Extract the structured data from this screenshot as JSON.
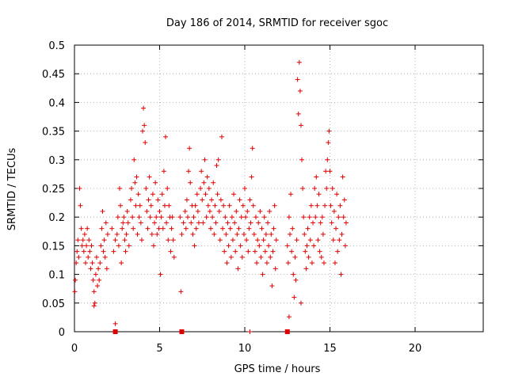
{
  "chart_data": {
    "type": "scatter",
    "title": "Day 186 of 2014, SRMTID for receiver sgoc",
    "xlabel": "GPS time / hours",
    "ylabel": "SRMTID / TECUs",
    "xlim": [
      0,
      24
    ],
    "ylim": [
      0,
      0.5
    ],
    "xticks": [
      0,
      5,
      10,
      15,
      20
    ],
    "yticks": [
      0,
      0.05,
      0.1,
      0.15,
      0.2,
      0.25,
      0.3,
      0.35,
      0.4,
      0.45,
      0.5
    ],
    "xtick_labels": [
      "0",
      "5",
      "10",
      "15",
      "20"
    ],
    "ytick_labels": [
      "0",
      "0.05",
      "0.1",
      "0.15",
      "0.2",
      "0.25",
      "0.3",
      "0.35",
      "0.4",
      "0.45",
      "0.5"
    ],
    "grid": true,
    "marker": "+",
    "color": "#e00000",
    "series": [
      {
        "name": "SRMTID",
        "points": [
          [
            0.02,
            0.07
          ],
          [
            0.05,
            0.09
          ],
          [
            0.1,
            0.12
          ],
          [
            0.15,
            0.14
          ],
          [
            0.2,
            0.16
          ],
          [
            0.25,
            0.13
          ],
          [
            0.3,
            0.25
          ],
          [
            0.35,
            0.22
          ],
          [
            0.4,
            0.18
          ],
          [
            0.45,
            0.15
          ],
          [
            0.5,
            0.16
          ],
          [
            0.55,
            0.14
          ],
          [
            0.6,
            0.17
          ],
          [
            0.65,
            0.12
          ],
          [
            0.7,
            0.15
          ],
          [
            0.75,
            0.18
          ],
          [
            0.8,
            0.13
          ],
          [
            0.85,
            0.16
          ],
          [
            0.9,
            0.14
          ],
          [
            0.95,
            0.11
          ],
          [
            1.0,
            0.15
          ],
          [
            1.05,
            0.12
          ],
          [
            1.1,
            0.09
          ],
          [
            1.15,
            0.07
          ],
          [
            1.2,
            0.05
          ],
          [
            1.25,
            0.1
          ],
          [
            1.3,
            0.13
          ],
          [
            1.35,
            0.08
          ],
          [
            1.4,
            0.11
          ],
          [
            1.45,
            0.09
          ],
          [
            1.5,
            0.12
          ],
          [
            1.55,
            0.15
          ],
          [
            1.6,
            0.18
          ],
          [
            1.65,
            0.21
          ],
          [
            1.7,
            0.14
          ],
          [
            1.75,
            0.16
          ],
          [
            1.8,
            0.13
          ],
          [
            1.85,
            0.19
          ],
          [
            1.9,
            0.11
          ],
          [
            1.95,
            0.17
          ],
          [
            2.2,
            0.18
          ],
          [
            2.3,
            0.14
          ],
          [
            2.4,
            0.16
          ],
          [
            2.5,
            0.17
          ],
          [
            2.55,
            0.2
          ],
          [
            2.6,
            0.15
          ],
          [
            2.65,
            0.25
          ],
          [
            2.7,
            0.22
          ],
          [
            2.75,
            0.12
          ],
          [
            2.8,
            0.18
          ],
          [
            2.85,
            0.19
          ],
          [
            2.9,
            0.2
          ],
          [
            2.95,
            0.16
          ],
          [
            3.0,
            0.14
          ],
          [
            3.05,
            0.17
          ],
          [
            3.1,
            0.21
          ],
          [
            3.15,
            0.19
          ],
          [
            3.2,
            0.15
          ],
          [
            3.3,
            0.23
          ],
          [
            3.35,
            0.25
          ],
          [
            3.4,
            0.2
          ],
          [
            3.45,
            0.18
          ],
          [
            3.5,
            0.3
          ],
          [
            3.55,
            0.26
          ],
          [
            3.6,
            0.22
          ],
          [
            3.65,
            0.27
          ],
          [
            3.7,
            0.17
          ],
          [
            3.75,
            0.24
          ],
          [
            3.8,
            0.2
          ],
          [
            3.85,
            0.22
          ],
          [
            3.9,
            0.19
          ],
          [
            3.95,
            0.16
          ],
          [
            4.0,
            0.35
          ],
          [
            4.05,
            0.39
          ],
          [
            4.1,
            0.36
          ],
          [
            4.15,
            0.33
          ],
          [
            4.2,
            0.25
          ],
          [
            4.25,
            0.21
          ],
          [
            4.3,
            0.18
          ],
          [
            4.35,
            0.23
          ],
          [
            4.4,
            0.27
          ],
          [
            4.45,
            0.2
          ],
          [
            4.5,
            0.22
          ],
          [
            4.55,
            0.17
          ],
          [
            4.6,
            0.24
          ],
          [
            4.65,
            0.15
          ],
          [
            4.7,
            0.19
          ],
          [
            4.75,
            0.26
          ],
          [
            4.8,
            0.2
          ],
          [
            4.85,
            0.17
          ],
          [
            4.9,
            0.23
          ],
          [
            4.95,
            0.18
          ],
          [
            5.0,
            0.21
          ],
          [
            5.05,
            0.1
          ],
          [
            5.1,
            0.2
          ],
          [
            5.15,
            0.24
          ],
          [
            5.2,
            0.18
          ],
          [
            5.25,
            0.28
          ],
          [
            5.3,
            0.22
          ],
          [
            5.35,
            0.34
          ],
          [
            5.4,
            0.19
          ],
          [
            5.45,
            0.25
          ],
          [
            5.5,
            0.16
          ],
          [
            5.55,
            0.22
          ],
          [
            5.6,
            0.2
          ],
          [
            5.65,
            0.14
          ],
          [
            5.7,
            0.18
          ],
          [
            5.75,
            0.2
          ],
          [
            5.8,
            0.16
          ],
          [
            5.85,
            0.13
          ],
          [
            6.2,
            0.2
          ],
          [
            6.3,
            0.17
          ],
          [
            6.4,
            0.19
          ],
          [
            6.5,
            0.21
          ],
          [
            6.55,
            0.18
          ],
          [
            6.6,
            0.23
          ],
          [
            6.65,
            0.2
          ],
          [
            6.7,
            0.28
          ],
          [
            6.75,
            0.32
          ],
          [
            6.8,
            0.26
          ],
          [
            6.85,
            0.19
          ],
          [
            6.9,
            0.22
          ],
          [
            6.95,
            0.17
          ],
          [
            7.0,
            0.2
          ],
          [
            7.05,
            0.15
          ],
          [
            7.1,
            0.22
          ],
          [
            7.15,
            0.18
          ],
          [
            7.2,
            0.24
          ],
          [
            7.25,
            0.21
          ],
          [
            7.3,
            0.19
          ],
          [
            7.4,
            0.25
          ],
          [
            7.45,
            0.28
          ],
          [
            7.5,
            0.23
          ],
          [
            7.55,
            0.19
          ],
          [
            7.6,
            0.26
          ],
          [
            7.65,
            0.3
          ],
          [
            7.7,
            0.24
          ],
          [
            7.75,
            0.2
          ],
          [
            7.8,
            0.27
          ],
          [
            7.85,
            0.22
          ],
          [
            7.9,
            0.25
          ],
          [
            7.95,
            0.21
          ],
          [
            8.0,
            0.18
          ],
          [
            8.05,
            0.23
          ],
          [
            8.1,
            0.2
          ],
          [
            8.15,
            0.26
          ],
          [
            8.2,
            0.17
          ],
          [
            8.25,
            0.22
          ],
          [
            8.3,
            0.19
          ],
          [
            8.35,
            0.29
          ],
          [
            8.4,
            0.24
          ],
          [
            8.45,
            0.3
          ],
          [
            8.5,
            0.21
          ],
          [
            8.55,
            0.16
          ],
          [
            8.6,
            0.23
          ],
          [
            8.65,
            0.34
          ],
          [
            8.7,
            0.18
          ],
          [
            8.75,
            0.22
          ],
          [
            8.8,
            0.14
          ],
          [
            8.85,
            0.2
          ],
          [
            8.9,
            0.17
          ],
          [
            8.95,
            0.12
          ],
          [
            9.0,
            0.19
          ],
          [
            9.05,
            0.15
          ],
          [
            9.1,
            0.22
          ],
          [
            9.15,
            0.18
          ],
          [
            9.2,
            0.13
          ],
          [
            9.25,
            0.2
          ],
          [
            9.3,
            0.16
          ],
          [
            9.35,
            0.24
          ],
          [
            9.4,
            0.19
          ],
          [
            9.45,
            0.14
          ],
          [
            9.5,
            0.21
          ],
          [
            9.55,
            0.17
          ],
          [
            9.6,
            0.11
          ],
          [
            9.65,
            0.18
          ],
          [
            9.7,
            0.23
          ],
          [
            9.75,
            0.15
          ],
          [
            9.8,
            0.2
          ],
          [
            9.85,
            0.13
          ],
          [
            9.9,
            0.22
          ],
          [
            9.95,
            0.17
          ],
          [
            10.0,
            0.25
          ],
          [
            10.05,
            0.2
          ],
          [
            10.1,
            0.16
          ],
          [
            10.15,
            0.21
          ],
          [
            10.2,
            0.14
          ],
          [
            10.25,
            0.18
          ],
          [
            10.3,
            0.23
          ],
          [
            10.35,
            0.19
          ],
          [
            10.4,
            0.27
          ],
          [
            10.45,
            0.32
          ],
          [
            10.5,
            0.22
          ],
          [
            10.55,
            0.17
          ],
          [
            10.6,
            0.14
          ],
          [
            10.65,
            0.2
          ],
          [
            10.7,
            0.12
          ],
          [
            10.75,
            0.16
          ],
          [
            10.8,
            0.19
          ],
          [
            10.85,
            0.15
          ],
          [
            10.9,
            0.21
          ],
          [
            10.95,
            0.13
          ],
          [
            11.0,
            0.18
          ],
          [
            11.05,
            0.1
          ],
          [
            11.1,
            0.16
          ],
          [
            11.15,
            0.2
          ],
          [
            11.2,
            0.14
          ],
          [
            11.25,
            0.17
          ],
          [
            11.3,
            0.12
          ],
          [
            11.35,
            0.19
          ],
          [
            11.4,
            0.15
          ],
          [
            11.45,
            0.21
          ],
          [
            11.5,
            0.13
          ],
          [
            11.55,
            0.17
          ],
          [
            11.6,
            0.08
          ],
          [
            11.65,
            0.14
          ],
          [
            11.7,
            0.18
          ],
          [
            11.75,
            0.22
          ],
          [
            11.8,
            0.11
          ],
          [
            11.85,
            0.16
          ],
          [
            12.5,
            0.15
          ],
          [
            12.55,
            0.12
          ],
          [
            12.6,
            0.2
          ],
          [
            12.65,
            0.17
          ],
          [
            12.7,
            0.24
          ],
          [
            12.75,
            0.14
          ],
          [
            12.8,
            0.18
          ],
          [
            12.85,
            0.1
          ],
          [
            12.9,
            0.06
          ],
          [
            12.95,
            0.13
          ],
          [
            13.0,
            0.09
          ],
          [
            13.05,
            0.16
          ],
          [
            13.1,
            0.44
          ],
          [
            13.15,
            0.38
          ],
          [
            13.2,
            0.47
          ],
          [
            13.25,
            0.42
          ],
          [
            13.3,
            0.36
          ],
          [
            13.35,
            0.3
          ],
          [
            13.4,
            0.25
          ],
          [
            13.45,
            0.2
          ],
          [
            13.5,
            0.17
          ],
          [
            13.55,
            0.14
          ],
          [
            13.6,
            0.11
          ],
          [
            13.65,
            0.15
          ],
          [
            13.7,
            0.18
          ],
          [
            13.75,
            0.13
          ],
          [
            13.8,
            0.2
          ],
          [
            13.85,
            0.16
          ],
          [
            13.9,
            0.22
          ],
          [
            13.95,
            0.12
          ],
          [
            14.0,
            0.19
          ],
          [
            14.05,
            0.15
          ],
          [
            14.1,
            0.25
          ],
          [
            14.15,
            0.2
          ],
          [
            14.2,
            0.27
          ],
          [
            14.25,
            0.22
          ],
          [
            14.3,
            0.16
          ],
          [
            14.35,
            0.24
          ],
          [
            14.4,
            0.14
          ],
          [
            14.45,
            0.19
          ],
          [
            14.5,
            0.13
          ],
          [
            14.55,
            0.2
          ],
          [
            14.6,
            0.17
          ],
          [
            14.65,
            0.12
          ],
          [
            14.7,
            0.22
          ],
          [
            14.75,
            0.28
          ],
          [
            14.8,
            0.25
          ],
          [
            14.85,
            0.3
          ],
          [
            14.9,
            0.33
          ],
          [
            14.95,
            0.35
          ],
          [
            15.0,
            0.28
          ],
          [
            15.05,
            0.22
          ],
          [
            15.1,
            0.19
          ],
          [
            15.15,
            0.25
          ],
          [
            15.2,
            0.16
          ],
          [
            15.25,
            0.21
          ],
          [
            15.3,
            0.12
          ],
          [
            15.35,
            0.18
          ],
          [
            15.4,
            0.24
          ],
          [
            15.45,
            0.14
          ],
          [
            15.5,
            0.2
          ],
          [
            15.55,
            0.16
          ],
          [
            15.6,
            0.22
          ],
          [
            15.65,
            0.1
          ],
          [
            15.7,
            0.17
          ],
          [
            15.75,
            0.27
          ],
          [
            15.8,
            0.2
          ],
          [
            15.85,
            0.23
          ],
          [
            15.9,
            0.15
          ],
          [
            15.95,
            0.19
          ],
          [
            2.4,
            0.014
          ],
          [
            10.3,
            0.0
          ],
          [
            12.6,
            0.026
          ],
          [
            6.25,
            0.07
          ],
          [
            1.15,
            0.045
          ],
          [
            13.3,
            0.05
          ]
        ]
      },
      {
        "name": "zero markers",
        "marker": "square",
        "points": [
          [
            2.4,
            0.0
          ],
          [
            6.3,
            0.0
          ],
          [
            12.5,
            0.0
          ]
        ]
      }
    ]
  }
}
